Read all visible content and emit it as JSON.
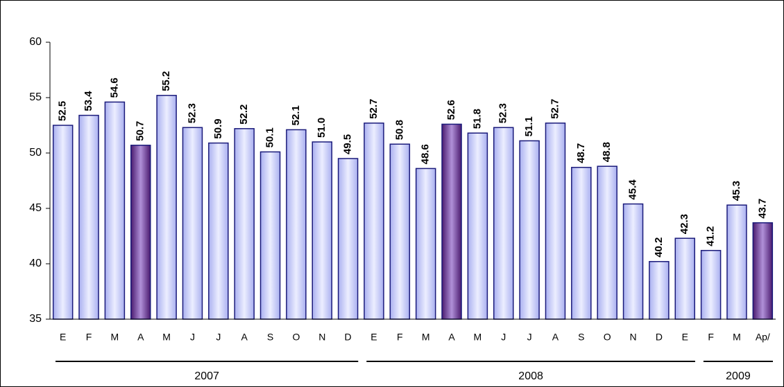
{
  "chart_data": {
    "type": "bar",
    "categories": [
      "E",
      "F",
      "M",
      "A",
      "M",
      "J",
      "J",
      "A",
      "S",
      "O",
      "N",
      "D",
      "E",
      "F",
      "M",
      "A",
      "M",
      "J",
      "J",
      "A",
      "S",
      "O",
      "N",
      "D",
      "E",
      "F",
      "M",
      "Ap/"
    ],
    "values": [
      52.5,
      53.4,
      54.6,
      50.7,
      55.2,
      52.3,
      50.9,
      52.2,
      50.1,
      52.1,
      51.0,
      49.5,
      52.7,
      50.8,
      48.6,
      52.6,
      51.8,
      52.3,
      51.1,
      52.7,
      48.7,
      48.8,
      45.4,
      40.2,
      42.3,
      41.2,
      45.3,
      43.7
    ],
    "value_labels": [
      "52.5",
      "53.4",
      "54.6",
      "50.7",
      "55.2",
      "52.3",
      "50.9",
      "52.2",
      "50.1",
      "52.1",
      "51.0",
      "49.5",
      "52.7",
      "50.8",
      "48.6",
      "52.6",
      "51.8",
      "52.3",
      "51.1",
      "52.7",
      "48.7",
      "48.8",
      "45.4",
      "40.2",
      "42.3",
      "41.2",
      "45.3",
      "43.7"
    ],
    "colors": [
      "light",
      "light",
      "light",
      "dark",
      "light",
      "light",
      "light",
      "light",
      "light",
      "light",
      "light",
      "light",
      "light",
      "light",
      "light",
      "dark",
      "light",
      "light",
      "light",
      "light",
      "light",
      "light",
      "light",
      "light",
      "light",
      "light",
      "light",
      "dark"
    ],
    "groups": [
      "2007",
      "2008",
      "2009"
    ],
    "ylim": [
      35,
      60
    ],
    "yticks": [
      35,
      40,
      45,
      50,
      55,
      60
    ]
  }
}
